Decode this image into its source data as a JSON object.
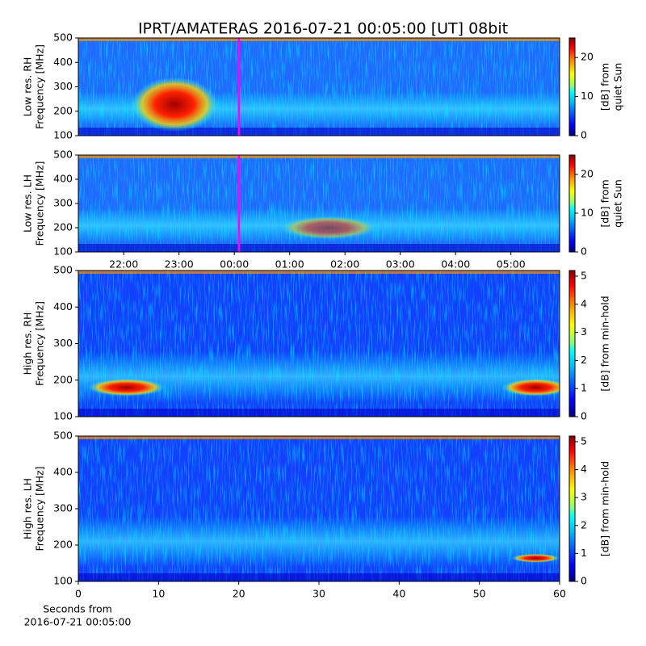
{
  "chart_data": [
    {
      "type": "heatmap",
      "title": "IPRT/AMATERAS 2016-07-21 00:05:00 [UT]   08bit",
      "ylabel": [
        "Low res. RH",
        "Frequency [MHz]"
      ],
      "ylim": [
        100,
        500
      ],
      "yticks": [
        100,
        200,
        300,
        400,
        500
      ],
      "xlim": [
        21.18,
        29.88
      ],
      "marker_x": 24.083,
      "marker_color": "#ff00ff",
      "colormap": "jet",
      "clim": [
        0,
        25
      ],
      "cticks": [
        0,
        10,
        20
      ],
      "clabel": [
        "[dB] from",
        "quiet Sun"
      ]
    },
    {
      "type": "heatmap",
      "ylabel": [
        "Low res. LH",
        "Frequency [MHz]"
      ],
      "ylim": [
        100,
        500
      ],
      "yticks": [
        100,
        200,
        300,
        400,
        500
      ],
      "xlim": [
        21.18,
        29.88
      ],
      "xticks": [
        {
          "value": 22,
          "label": "22:00"
        },
        {
          "value": 23,
          "label": "23:00"
        },
        {
          "value": 24,
          "label": "00:00"
        },
        {
          "value": 25,
          "label": "01:00"
        },
        {
          "value": 26,
          "label": "02:00"
        },
        {
          "value": 27,
          "label": "03:00"
        },
        {
          "value": 28,
          "label": "04:00"
        },
        {
          "value": 29,
          "label": "05:00"
        }
      ],
      "marker_x": 24.083,
      "marker_color": "#ff00ff",
      "colormap": "jet",
      "clim": [
        0,
        25
      ],
      "cticks": [
        0,
        10,
        20
      ],
      "clabel": [
        "[dB] from",
        "quiet Sun"
      ]
    },
    {
      "type": "heatmap",
      "ylabel": [
        "High res. RH",
        "Frequency [MHz]"
      ],
      "ylim": [
        100,
        500
      ],
      "yticks": [
        100,
        200,
        300,
        400,
        500
      ],
      "xlim": [
        0,
        60
      ],
      "colormap": "jet",
      "clim": [
        0,
        5.2
      ],
      "cticks": [
        0,
        1,
        2,
        3,
        4,
        5
      ],
      "clabel": [
        "[dB] from min-hold"
      ]
    },
    {
      "type": "heatmap",
      "ylabel": [
        "High res. LH",
        "Frequency [MHz]"
      ],
      "ylim": [
        100,
        500
      ],
      "yticks": [
        100,
        200,
        300,
        400,
        500
      ],
      "xlim": [
        0,
        60
      ],
      "xticks": [
        0,
        10,
        20,
        30,
        40,
        50,
        60
      ],
      "xlabel": [
        "Seconds from",
        "2016-07-21 00:05:00"
      ],
      "colormap": "jet",
      "clim": [
        0,
        5.2
      ],
      "cticks": [
        0,
        1,
        2,
        3,
        4,
        5
      ],
      "clabel": [
        "[dB] from min-hold"
      ]
    }
  ]
}
